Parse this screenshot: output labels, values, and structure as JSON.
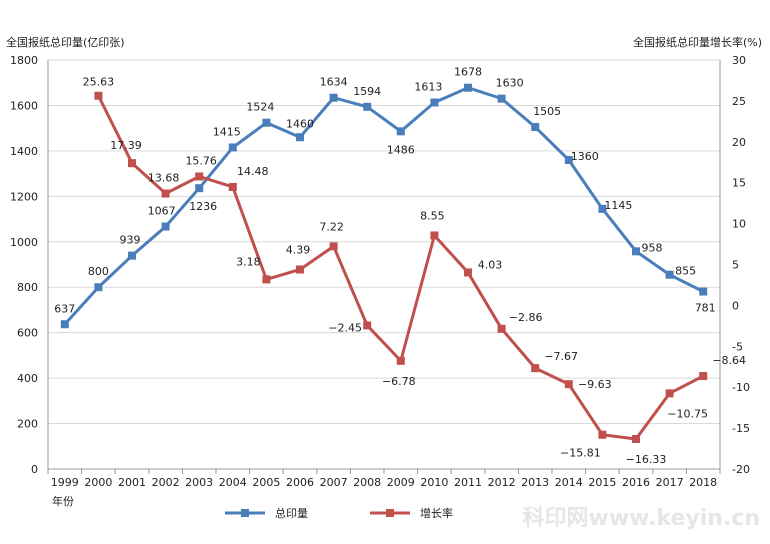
{
  "chart_data": {
    "type": "line",
    "ylabel_left": "全国报纸总印量(亿印张)",
    "ylabel_right": "全国报纸总印量增长率(%)",
    "xlabel": "年份",
    "categories": [
      "1999",
      "2000",
      "2001",
      "2002",
      "2003",
      "2004",
      "2005",
      "2006",
      "2007",
      "2008",
      "2009",
      "2010",
      "2011",
      "2012",
      "2013",
      "2014",
      "2015",
      "2016",
      "2017",
      "2018"
    ],
    "ylim_left": [
      0,
      1800
    ],
    "yticks_left": [
      "0",
      "200",
      "400",
      "600",
      "800",
      "1000",
      "1200",
      "1400",
      "1600",
      "1800"
    ],
    "ylim_right": [
      -20,
      30
    ],
    "yticks_right": [
      "-20",
      "-15",
      "-10",
      "-5",
      "0",
      "5",
      "10",
      "15",
      "20",
      "25",
      "30"
    ],
    "grid": true,
    "legend_position": "bottom",
    "series": [
      {
        "name": "总印量",
        "axis": "left",
        "color": "#4a7ebb",
        "values": [
          637,
          800,
          939,
          1067,
          1236,
          1415,
          1524,
          1460,
          1634,
          1594,
          1486,
          1613,
          1678,
          1630,
          1505,
          1360,
          1145,
          958,
          855,
          781
        ],
        "labels": [
          "637",
          "800",
          "939",
          "1067",
          "1236",
          "1415",
          "1524",
          "1460",
          "1634",
          "1594",
          "1486",
          "1613",
          "1678",
          "1630",
          "1505",
          "1360",
          "1145",
          "958",
          "855",
          "781"
        ]
      },
      {
        "name": "增长率",
        "axis": "right",
        "color": "#c0504d",
        "values": [
          null,
          25.63,
          17.39,
          13.68,
          15.76,
          14.48,
          3.18,
          4.39,
          7.22,
          -2.45,
          -6.78,
          8.55,
          4.03,
          -2.86,
          -7.67,
          -9.63,
          -15.81,
          -16.33,
          -10.75,
          -8.64
        ],
        "labels": [
          "",
          "25.63",
          "17.39",
          "13.68",
          "15.76",
          "14.48",
          "3.18",
          "4.39",
          "7.22",
          "−2.45",
          "−6.78",
          "8.55",
          "4.03",
          "−2.86",
          "−7.67",
          "−9.63",
          "−15.81",
          "−16.33",
          "−10.75",
          "−8.64"
        ]
      }
    ]
  },
  "watermark": "科印网www.keyin.cn"
}
